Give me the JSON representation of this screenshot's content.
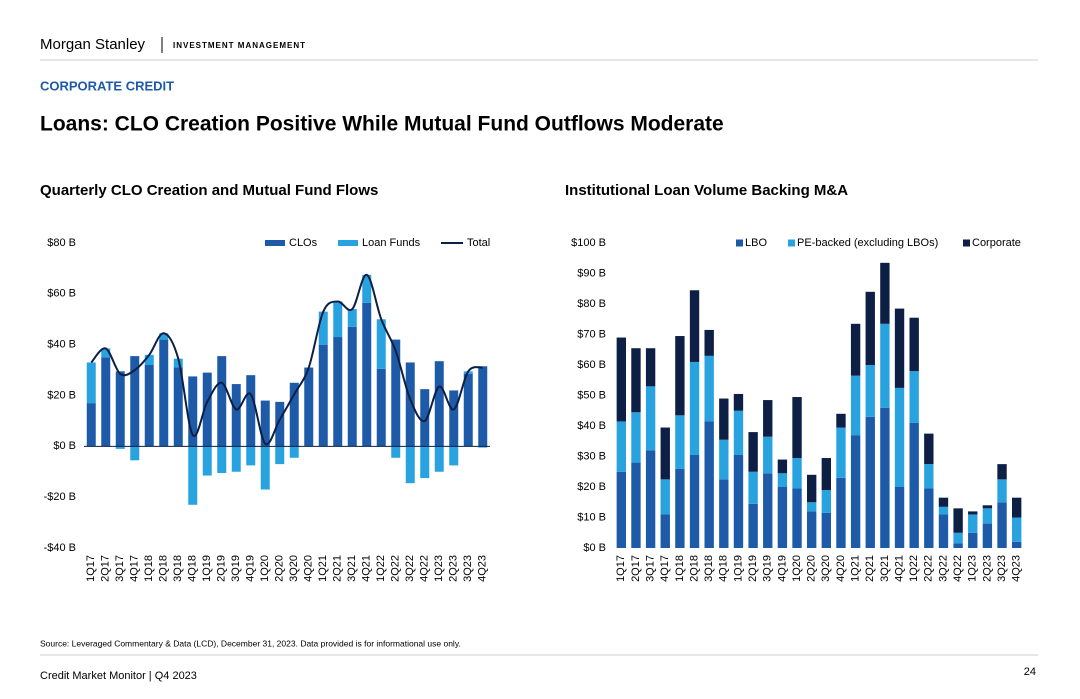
{
  "header": {
    "brand": "Morgan Stanley",
    "division": "INVESTMENT MANAGEMENT",
    "section": "CORPORATE CREDIT",
    "title": "Loans: CLO Creation Positive While Mutual Fund Outflows Moderate"
  },
  "chart_data": [
    {
      "type": "bar",
      "stacked": true,
      "title": "Quarterly CLO Creation and Mutual Fund Flows",
      "categories": [
        "1Q17",
        "2Q17",
        "3Q17",
        "4Q17",
        "1Q18",
        "2Q18",
        "3Q18",
        "4Q18",
        "1Q19",
        "2Q19",
        "3Q19",
        "4Q19",
        "1Q20",
        "2Q20",
        "3Q20",
        "4Q20",
        "1Q21",
        "2Q21",
        "3Q21",
        "4Q21",
        "1Q22",
        "2Q22",
        "3Q22",
        "4Q22",
        "1Q23",
        "2Q23",
        "3Q23",
        "4Q23"
      ],
      "series": [
        {
          "name": "CLOs",
          "type": "bar",
          "color": "#1d5ba8",
          "values": [
            17,
            35,
            29.5,
            35.5,
            32,
            42,
            31,
            27.5,
            29,
            35.5,
            24.5,
            28,
            18,
            17.5,
            25,
            31,
            40,
            43,
            47,
            56.5,
            30.5,
            42,
            33,
            22.5,
            33.5,
            22,
            28.5,
            31.5
          ]
        },
        {
          "name": "Loan Funds",
          "type": "bar",
          "color": "#29a3e0",
          "values": [
            16,
            3.5,
            -1,
            -5.5,
            4,
            2.5,
            3.5,
            -23,
            -11.5,
            -10.5,
            -10,
            -7.5,
            -17,
            -7,
            -4.5,
            0,
            13,
            14,
            7,
            11,
            19.5,
            -4.5,
            -14.5,
            -12.5,
            -10,
            -7.5,
            1,
            -0.5
          ]
        },
        {
          "name": "Total",
          "type": "line",
          "color": "#0d1f45",
          "values": [
            33,
            38.5,
            28.5,
            30,
            36,
            44.5,
            34.5,
            4.5,
            17.5,
            25,
            14.5,
            20.5,
            1,
            10.5,
            20.5,
            31,
            53,
            57,
            54,
            67.5,
            50,
            37.5,
            18.5,
            10,
            23.5,
            14.5,
            29.5,
            31
          ]
        }
      ],
      "ylim": [
        -40,
        80
      ],
      "yticks": [
        {
          "value": -40,
          "label": "-$40 B"
        },
        {
          "value": -20,
          "label": "-$20 B"
        },
        {
          "value": 0,
          "label": "$0 B"
        },
        {
          "value": 20,
          "label": "$20 B"
        },
        {
          "value": 40,
          "label": "$40 B"
        },
        {
          "value": 60,
          "label": "$60 B"
        },
        {
          "value": 80,
          "label": "$80 B"
        }
      ],
      "grid": false,
      "legend": "top"
    },
    {
      "type": "bar",
      "stacked": true,
      "title": "Institutional Loan Volume Backing M&A",
      "categories": [
        "1Q17",
        "2Q17",
        "3Q17",
        "4Q17",
        "1Q18",
        "2Q18",
        "3Q18",
        "4Q18",
        "1Q19",
        "2Q19",
        "3Q19",
        "4Q19",
        "1Q20",
        "2Q20",
        "3Q20",
        "4Q20",
        "1Q21",
        "2Q21",
        "3Q21",
        "4Q21",
        "1Q22",
        "2Q22",
        "3Q22",
        "4Q22",
        "1Q23",
        "2Q23",
        "3Q23",
        "4Q23"
      ],
      "series": [
        {
          "name": "LBO",
          "type": "bar",
          "color": "#1d5ba8",
          "values": [
            25,
            28,
            32,
            11,
            26,
            30.5,
            41.5,
            22.5,
            30.5,
            14.5,
            24.5,
            20,
            19.5,
            12,
            11.5,
            23,
            37,
            43,
            46,
            20,
            41,
            19.5,
            11,
            1.5,
            5,
            8,
            15,
            2
          ]
        },
        {
          "name": "PE-backed (excluding LBOs)",
          "type": "bar",
          "color": "#29a3e0",
          "values": [
            16.5,
            16.5,
            21,
            11.5,
            17.5,
            30.5,
            21.5,
            13,
            14.5,
            10.5,
            12,
            4.5,
            10,
            3,
            7.5,
            16.5,
            19.5,
            17,
            27.5,
            32.5,
            17,
            8,
            2.5,
            3.5,
            6,
            5,
            7.5,
            8
          ]
        },
        {
          "name": "Corporate",
          "type": "bar",
          "color": "#0d1f45",
          "values": [
            27.5,
            21,
            12.5,
            17,
            26,
            23.5,
            8.5,
            13.5,
            5.5,
            13,
            12,
            4.5,
            20,
            9,
            10.5,
            4.5,
            17,
            24,
            20,
            26,
            17.5,
            10,
            3,
            8,
            1,
            1,
            5,
            6.5
          ]
        }
      ],
      "ylim": [
        0,
        100
      ],
      "yticks": [
        {
          "value": 0,
          "label": "$0 B"
        },
        {
          "value": 10,
          "label": "$10 B"
        },
        {
          "value": 20,
          "label": "$20 B"
        },
        {
          "value": 30,
          "label": "$30 B"
        },
        {
          "value": 40,
          "label": "$40 B"
        },
        {
          "value": 50,
          "label": "$50 B"
        },
        {
          "value": 60,
          "label": "$60 B"
        },
        {
          "value": 70,
          "label": "$70 B"
        },
        {
          "value": 80,
          "label": "$80 B"
        },
        {
          "value": 90,
          "label": "$90 B"
        },
        {
          "value": 100,
          "label": "$100 B"
        }
      ],
      "grid": false,
      "legend": "top"
    }
  ],
  "footer": {
    "source": "Source: Leveraged Commentary & Data (LCD), December 31, 2023. Data provided is for informational use only.",
    "report": "Credit Market Monitor | Q4 2023",
    "page": "24"
  }
}
